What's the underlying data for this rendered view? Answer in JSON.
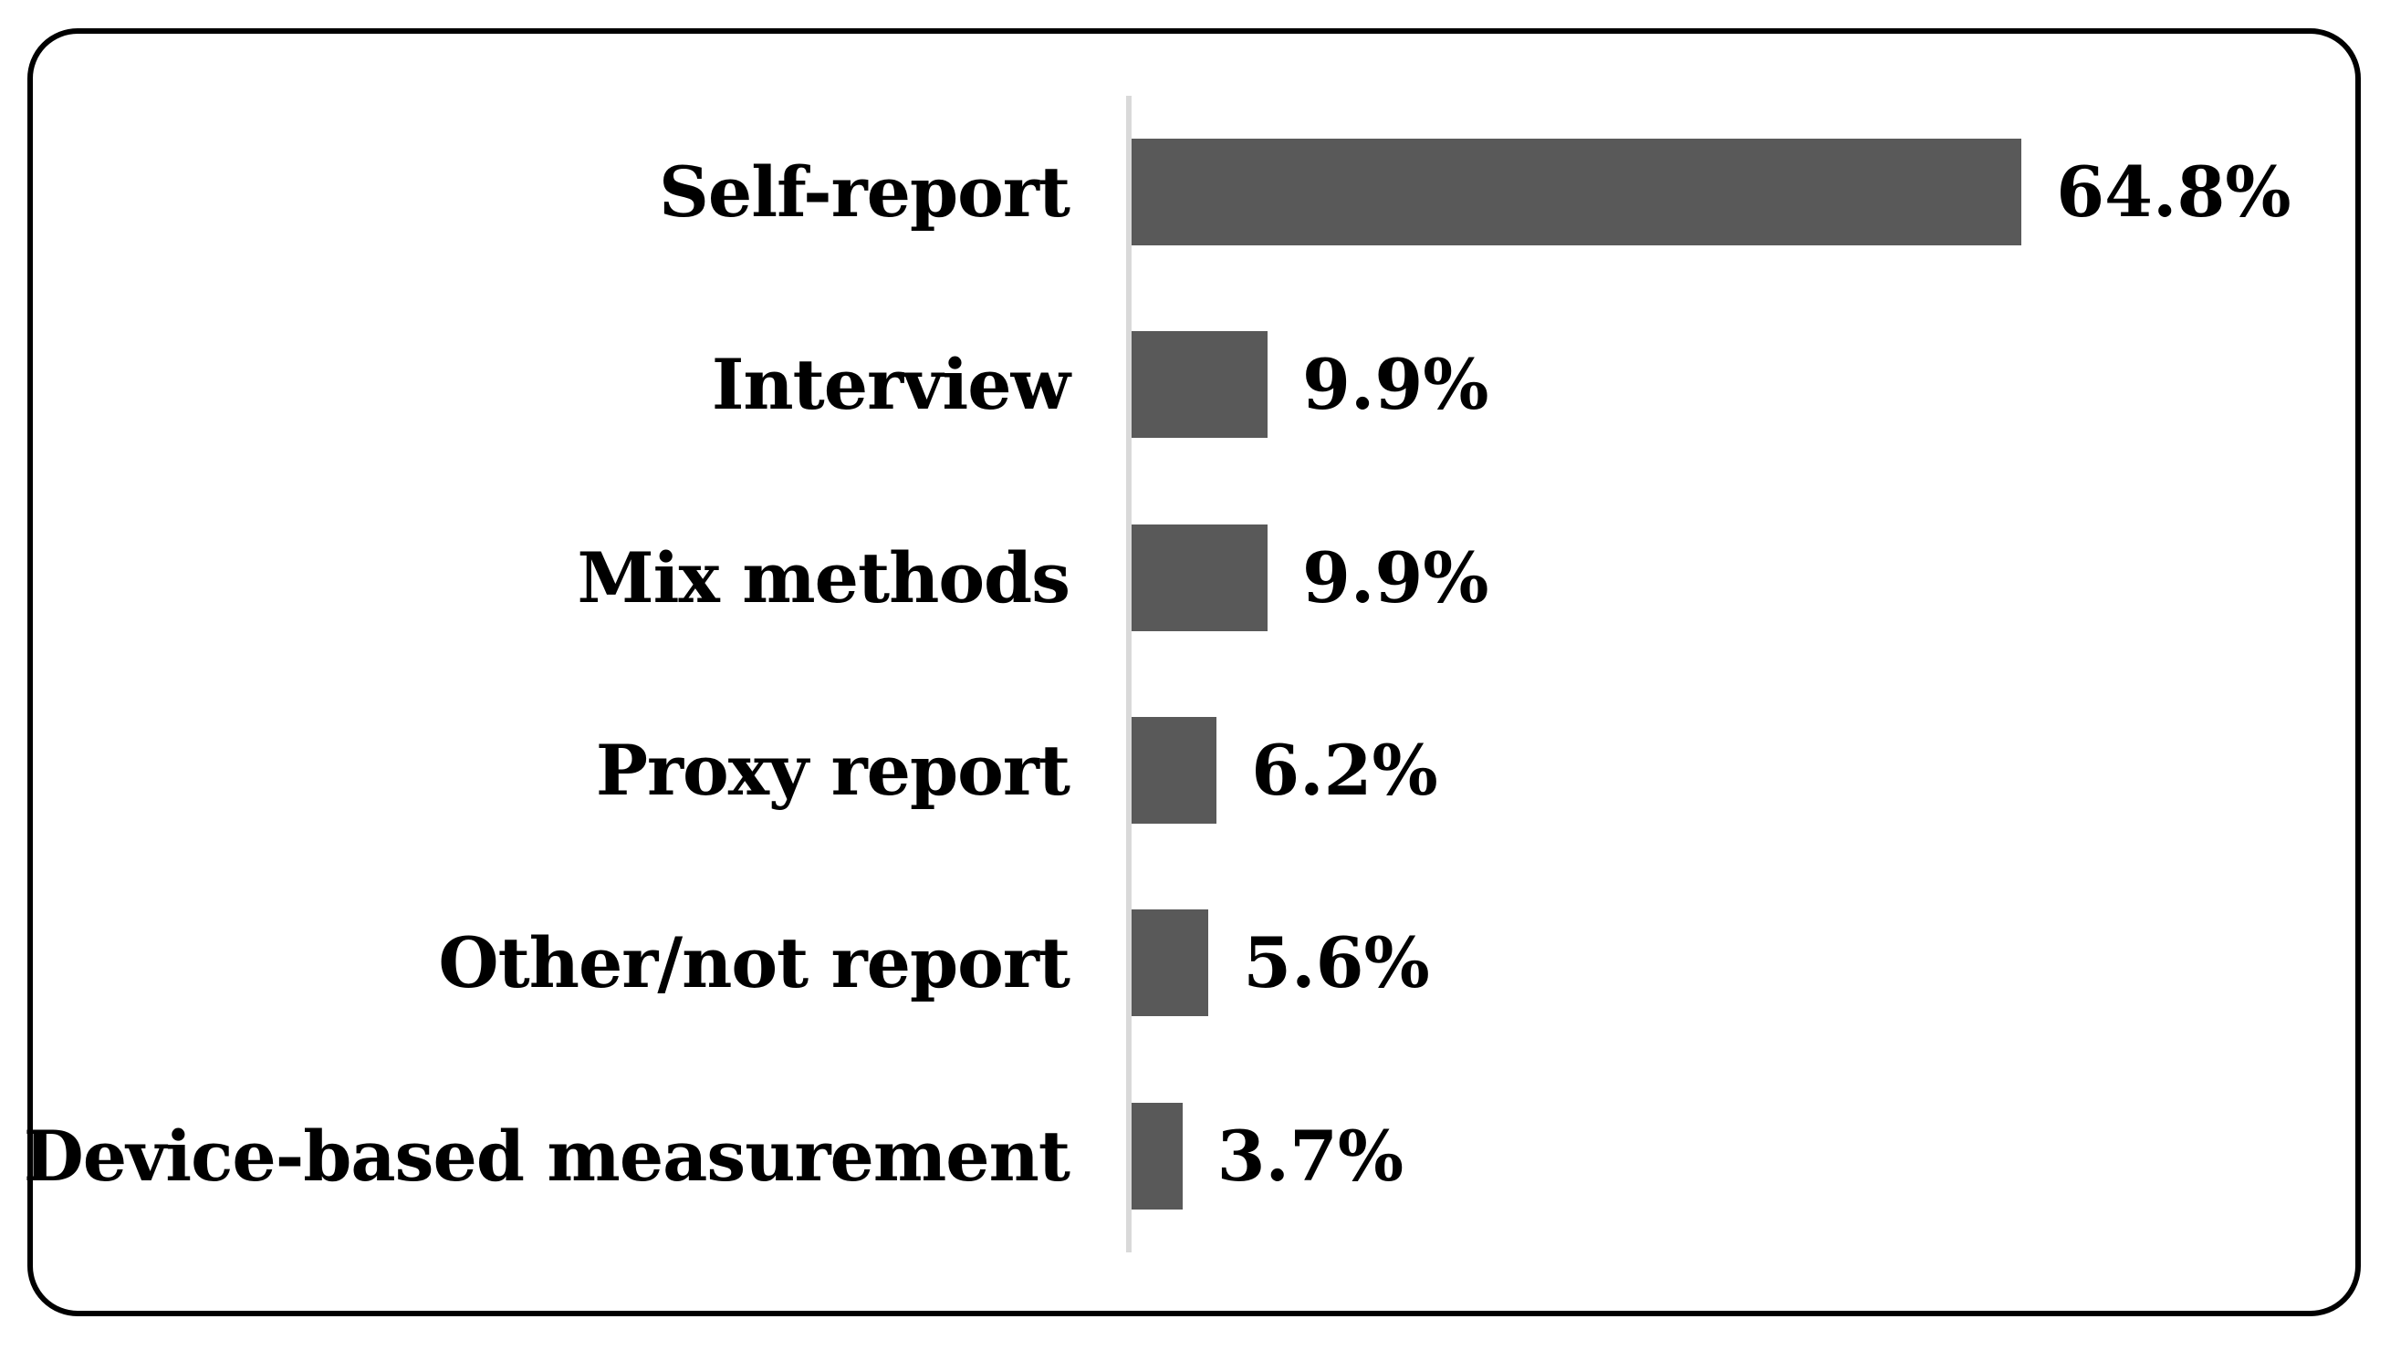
{
  "chart_data": {
    "type": "bar",
    "orientation": "horizontal",
    "title": "",
    "xlabel": "",
    "ylabel": "",
    "categories": [
      "Self-report",
      "Interview",
      "Mix methods",
      "Proxy report",
      "Other/not report",
      "Device-based measurement"
    ],
    "values": [
      64.8,
      9.9,
      9.9,
      6.2,
      5.6,
      3.7
    ],
    "value_labels": [
      "64.8%",
      "9.9%",
      "9.9%",
      "6.2%",
      "5.6%",
      "3.7%"
    ],
    "xlim": [
      0,
      70
    ],
    "grid": false,
    "legend": false,
    "axis_ticks": []
  },
  "style": {
    "bar_color": "#595959",
    "axis_line_color": "#d9d9d9",
    "frame_border_color": "#000000",
    "label_color": "#000000",
    "background_color": "#ffffff"
  }
}
